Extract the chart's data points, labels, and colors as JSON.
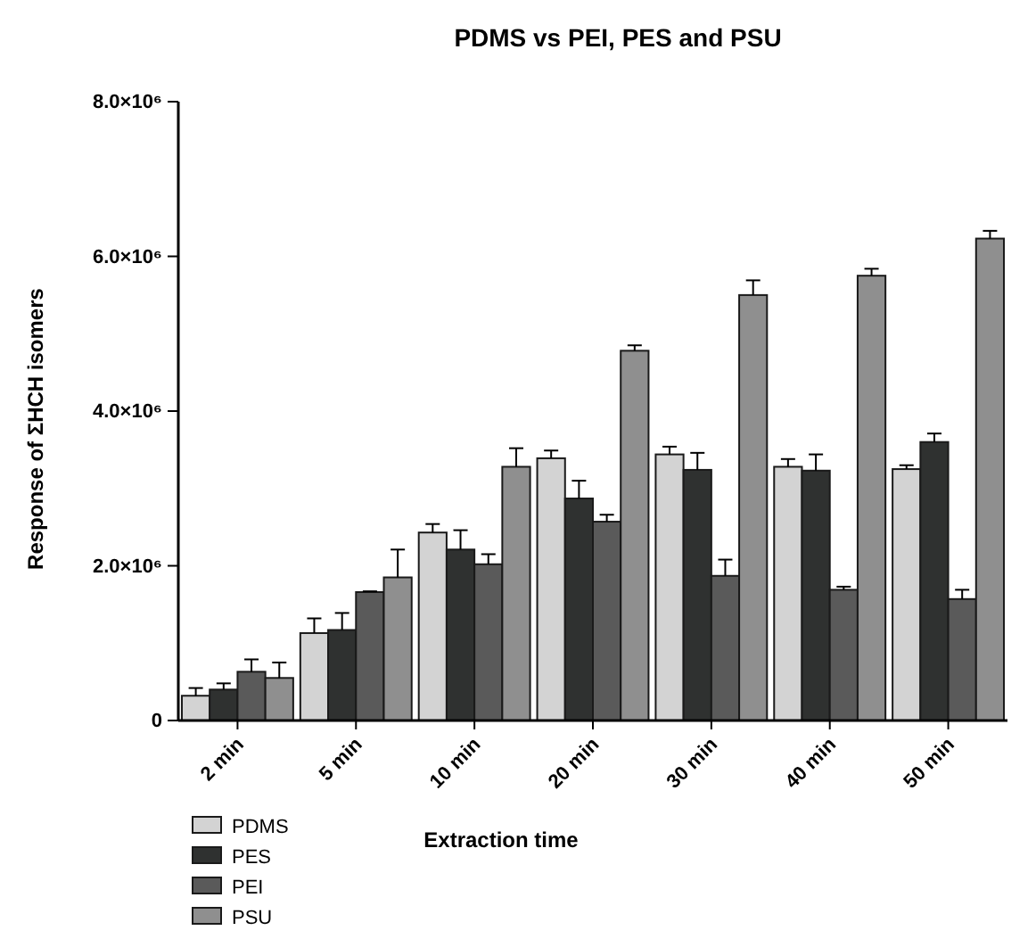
{
  "chart_data": {
    "type": "bar",
    "title": "PDMS vs PEI, PES and PSU",
    "xlabel": "Extraction time",
    "ylabel": "Response of ΣHCH isomers",
    "categories": [
      "2 min",
      "5 min",
      "10 min",
      "20 min",
      "30 min",
      "40 min",
      "50 min"
    ],
    "series": [
      {
        "name": "PDMS",
        "color": "#d3d3d3",
        "values": [
          320000,
          1130000,
          2430000,
          3390000,
          3440000,
          3280000,
          3250000
        ],
        "errors": [
          [
            320000,
            420000
          ],
          [
            1130000,
            1320000
          ],
          [
            2430000,
            2540000
          ],
          [
            3390000,
            3490000
          ],
          [
            3440000,
            3540000
          ],
          [
            3280000,
            3380000
          ],
          [
            3250000,
            3300000
          ]
        ]
      },
      {
        "name": "PES",
        "color": "#2f3130",
        "values": [
          400000,
          1170000,
          2210000,
          2870000,
          3240000,
          3230000,
          3600000
        ],
        "errors": [
          [
            400000,
            480000
          ],
          [
            1170000,
            1390000
          ],
          [
            2210000,
            2460000
          ],
          [
            2870000,
            3100000
          ],
          [
            3240000,
            3460000
          ],
          [
            3230000,
            3440000
          ],
          [
            3600000,
            3710000
          ]
        ]
      },
      {
        "name": "PEI",
        "color": "#5a5a5a",
        "values": [
          630000,
          1660000,
          2020000,
          2570000,
          1870000,
          1690000,
          1570000
        ],
        "errors": [
          [
            630000,
            790000
          ],
          [
            1660000,
            1670000
          ],
          [
            2020000,
            2150000
          ],
          [
            2570000,
            2660000
          ],
          [
            1870000,
            2080000
          ],
          [
            1690000,
            1730000
          ],
          [
            1570000,
            1690000
          ]
        ]
      },
      {
        "name": "PSU",
        "color": "#8f8f8f",
        "values": [
          550000,
          1850000,
          3280000,
          4780000,
          5500000,
          5750000,
          6230000
        ],
        "errors": [
          [
            550000,
            750000
          ],
          [
            1850000,
            2210000
          ],
          [
            3280000,
            3520000
          ],
          [
            4780000,
            4850000
          ],
          [
            5500000,
            5690000
          ],
          [
            5750000,
            5840000
          ],
          [
            6230000,
            6330000
          ]
        ]
      }
    ],
    "ylim": [
      0,
      8000000
    ],
    "yticks": [
      0,
      {
        "value": 2000000,
        "label": "2.0×10⁶"
      },
      {
        "value": 4000000,
        "label": "4.0×10⁶"
      },
      {
        "value": 6000000,
        "label": "6.0×10⁶"
      },
      {
        "value": 8000000,
        "label": "8.0×10⁶"
      }
    ],
    "grid": false,
    "legend": "bottom left"
  }
}
